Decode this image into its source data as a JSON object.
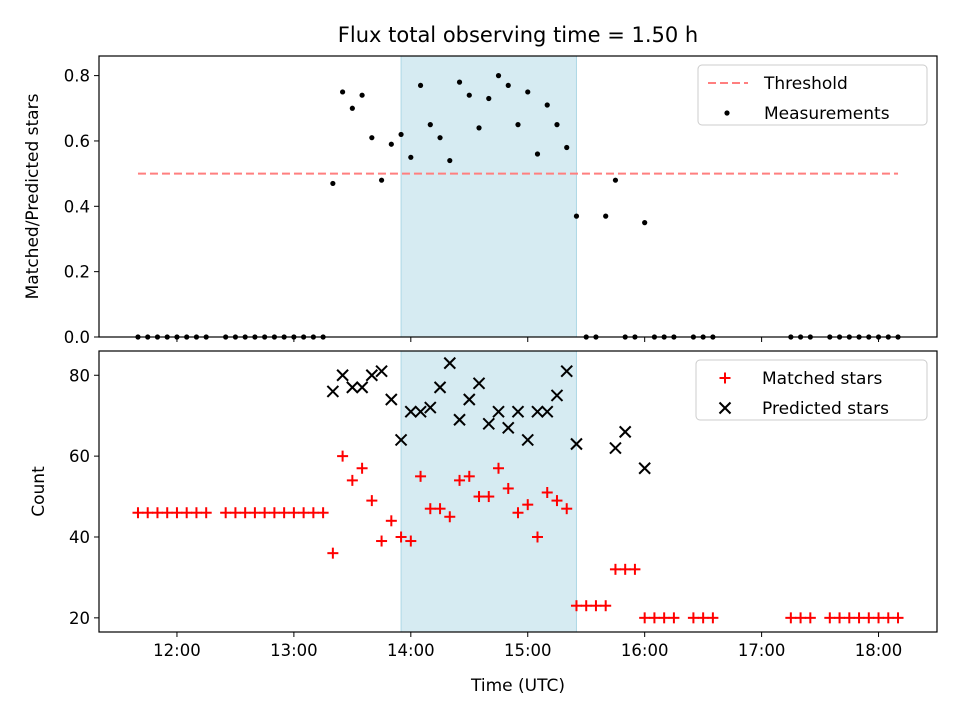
{
  "title": "Flux total observing time = 1.50 h",
  "colors": {
    "threshold": "#ff7f7f",
    "measurement": "#000000",
    "matched": "#ff0000",
    "predicted": "#000000",
    "shade": "#add8e6"
  },
  "chart_data": [
    {
      "type": "scatter",
      "ylabel": "Matched/Predicted stars",
      "ylim": [
        0,
        0.86
      ],
      "yticks": [
        0.0,
        0.2,
        0.4,
        0.6,
        0.8
      ],
      "ytick_labels": [
        "0.0",
        "0.2",
        "0.4",
        "0.6",
        "0.8"
      ],
      "xlim": [
        "11:20",
        "18:30"
      ],
      "shaded_span": [
        "13:55",
        "15:25"
      ],
      "legend_position": "top-right",
      "threshold": {
        "name": "Threshold",
        "value": 0.5,
        "x_range": [
          "11:40",
          "18:10"
        ]
      },
      "series": [
        {
          "name": "Measurements",
          "x": [
            "11:40",
            "11:45",
            "11:50",
            "11:55",
            "12:00",
            "12:05",
            "12:10",
            "12:15",
            "12:25",
            "12:30",
            "12:35",
            "12:40",
            "12:45",
            "12:50",
            "12:55",
            "13:00",
            "13:05",
            "13:10",
            "13:15",
            "13:20",
            "13:25",
            "13:30",
            "13:35",
            "13:40",
            "13:45",
            "13:50",
            "13:55",
            "14:00",
            "14:05",
            "14:10",
            "14:15",
            "14:20",
            "14:25",
            "14:30",
            "14:35",
            "14:40",
            "14:45",
            "14:50",
            "14:55",
            "15:00",
            "15:05",
            "15:10",
            "15:15",
            "15:20",
            "15:25",
            "15:30",
            "15:35",
            "15:40",
            "15:45",
            "15:50",
            "15:55",
            "16:00",
            "16:05",
            "16:10",
            "16:15",
            "16:25",
            "16:30",
            "16:35",
            "17:15",
            "17:20",
            "17:25",
            "17:35",
            "17:40",
            "17:45",
            "17:50",
            "17:55",
            "18:00",
            "18:05",
            "18:10"
          ],
          "y": [
            0,
            0,
            0,
            0,
            0,
            0,
            0,
            0,
            0,
            0,
            0,
            0,
            0,
            0,
            0,
            0,
            0,
            0,
            0,
            0.47,
            0.75,
            0.7,
            0.74,
            0.61,
            0.48,
            0.59,
            0.62,
            0.55,
            0.77,
            0.65,
            0.61,
            0.54,
            0.78,
            0.74,
            0.64,
            0.73,
            0.8,
            0.77,
            0.65,
            0.75,
            0.56,
            0.71,
            0.65,
            0.58,
            0.37,
            0,
            0,
            0.37,
            0.48,
            0,
            0,
            0.35,
            0,
            0,
            0,
            0,
            0,
            0,
            0,
            0,
            0,
            0,
            0,
            0,
            0,
            0,
            0,
            0,
            0
          ]
        }
      ]
    },
    {
      "type": "scatter",
      "xlabel": "Time (UTC)",
      "ylabel": "Count",
      "ylim": [
        16.5,
        86
      ],
      "yticks": [
        20,
        40,
        60,
        80
      ],
      "ytick_labels": [
        "20",
        "40",
        "60",
        "80"
      ],
      "xlim": [
        "11:20",
        "18:30"
      ],
      "xticks": [
        "12:00",
        "13:00",
        "14:00",
        "15:00",
        "16:00",
        "17:00",
        "18:00"
      ],
      "shaded_span": [
        "13:55",
        "15:25"
      ],
      "legend_position": "top-right",
      "series": [
        {
          "name": "Matched stars",
          "marker": "plus",
          "x": [
            "11:40",
            "11:45",
            "11:50",
            "11:55",
            "12:00",
            "12:05",
            "12:10",
            "12:15",
            "12:25",
            "12:30",
            "12:35",
            "12:40",
            "12:45",
            "12:50",
            "12:55",
            "13:00",
            "13:05",
            "13:10",
            "13:15",
            "13:20",
            "13:25",
            "13:30",
            "13:35",
            "13:40",
            "13:45",
            "13:50",
            "13:55",
            "14:00",
            "14:05",
            "14:10",
            "14:15",
            "14:20",
            "14:25",
            "14:30",
            "14:35",
            "14:40",
            "14:45",
            "14:50",
            "14:55",
            "15:00",
            "15:05",
            "15:10",
            "15:15",
            "15:20",
            "15:25",
            "15:30",
            "15:35",
            "15:40",
            "15:45",
            "15:50",
            "15:55",
            "16:00",
            "16:05",
            "16:10",
            "16:15",
            "16:25",
            "16:30",
            "16:35",
            "17:15",
            "17:20",
            "17:25",
            "17:35",
            "17:40",
            "17:45",
            "17:50",
            "17:55",
            "18:00",
            "18:05",
            "18:10"
          ],
          "y": [
            46,
            46,
            46,
            46,
            46,
            46,
            46,
            46,
            46,
            46,
            46,
            46,
            46,
            46,
            46,
            46,
            46,
            46,
            46,
            36,
            60,
            54,
            57,
            49,
            39,
            44,
            40,
            39,
            55,
            47,
            47,
            45,
            54,
            55,
            50,
            50,
            57,
            52,
            46,
            48,
            40,
            51,
            49,
            47,
            23,
            23,
            23,
            23,
            32,
            32,
            32,
            20,
            20,
            20,
            20,
            20,
            20,
            20,
            20,
            20,
            20,
            20,
            20,
            20,
            20,
            20,
            20,
            20,
            20
          ]
        },
        {
          "name": "Predicted stars",
          "marker": "x",
          "x": [
            "13:20",
            "13:25",
            "13:30",
            "13:35",
            "13:40",
            "13:45",
            "13:50",
            "13:55",
            "14:00",
            "14:05",
            "14:10",
            "14:15",
            "14:20",
            "14:25",
            "14:30",
            "14:35",
            "14:40",
            "14:45",
            "14:50",
            "14:55",
            "15:00",
            "15:05",
            "15:10",
            "15:15",
            "15:20",
            "15:25",
            "15:45",
            "15:50",
            "16:00"
          ],
          "y": [
            76,
            80,
            77,
            77,
            80,
            81,
            74,
            64,
            71,
            71,
            72,
            77,
            83,
            69,
            74,
            78,
            68,
            71,
            67,
            71,
            64,
            71,
            71,
            75,
            81,
            63,
            62,
            66,
            57
          ]
        }
      ]
    }
  ]
}
